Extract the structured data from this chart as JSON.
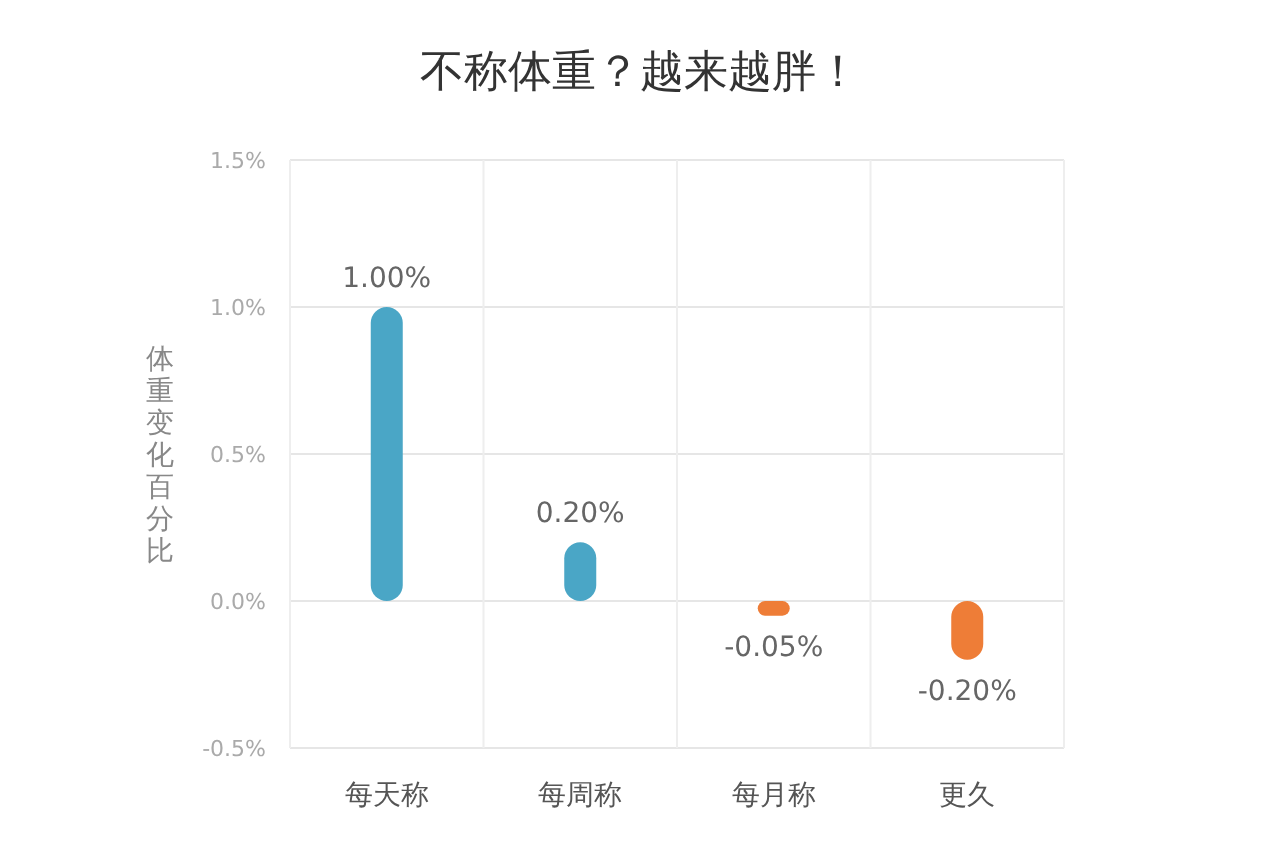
{
  "chart_data": {
    "type": "bar",
    "title": "不称体重？越来越胖！",
    "ylabel": "体重变化百分比",
    "categories": [
      "每天称",
      "每周称",
      "每月称",
      "更久"
    ],
    "values": [
      1.0,
      0.2,
      -0.05,
      -0.2
    ],
    "colors": [
      "#4aa6c6",
      "#4aa6c6",
      "#ee7d37",
      "#ee7d37"
    ],
    "value_labels": [
      "1.00%",
      "0.20%",
      "-0.05%",
      "-0.20%"
    ],
    "ylim": [
      -0.5,
      1.5
    ],
    "yticks": [
      {
        "value": -0.5,
        "label": "-0.5%"
      },
      {
        "value": 0,
        "label": "0.0%"
      },
      {
        "value": 0.5,
        "label": "0.5%"
      },
      {
        "value": 1.0,
        "label": "1.0%"
      },
      {
        "value": 1.5,
        "label": "1.5%"
      }
    ],
    "grid": true
  }
}
